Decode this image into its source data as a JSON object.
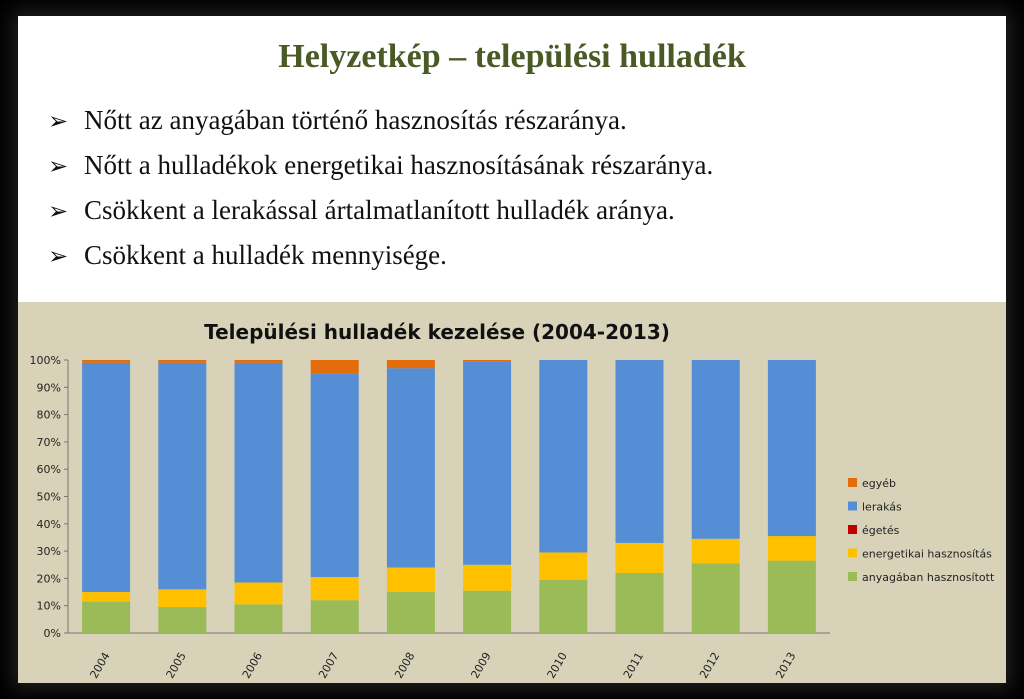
{
  "slide": {
    "title": "Helyzetkép – települési hulladék",
    "bullets": [
      "Nőtt az anyagában történő hasznosítás részaránya.",
      "Nőtt a hulladékok energetikai hasznosításának részaránya.",
      "Csökkent a lerakással ártalmatlanított hulladék aránya.",
      "Csökkent a hulladék mennyisége."
    ]
  },
  "chart_data": {
    "type": "bar",
    "stacked": true,
    "title": "Települési hulladék kezelése (2004-2013)",
    "categories": [
      "2004",
      "2005",
      "2006",
      "2007",
      "2008",
      "2009",
      "2010",
      "2011",
      "2012",
      "2013"
    ],
    "ylim": [
      0,
      100
    ],
    "yticks": [
      "0%",
      "10%",
      "20%",
      "30%",
      "40%",
      "50%",
      "60%",
      "70%",
      "80%",
      "90%",
      "100%"
    ],
    "grid": false,
    "legend_position": "right",
    "series": [
      {
        "name": "anyagában hasznosított",
        "color": "#9bbb59",
        "values": [
          11.5,
          9.5,
          10.5,
          12,
          15,
          15.5,
          19.5,
          22,
          25.5,
          26.5
        ]
      },
      {
        "name": "energetikai hasznosítás",
        "color": "#ffc000",
        "values": [
          3.5,
          6.5,
          8,
          8.5,
          9,
          9.5,
          10,
          11,
          9,
          9
        ]
      },
      {
        "name": "égetés",
        "color": "#c00000",
        "values": [
          0,
          0,
          0,
          0,
          0,
          0,
          0,
          0,
          0,
          0
        ]
      },
      {
        "name": "lerakás",
        "color": "#558ed5",
        "values": [
          84,
          83,
          80.5,
          74.5,
          73,
          74.5,
          70.5,
          67,
          65.5,
          64.5
        ]
      },
      {
        "name": "egyéb",
        "color": "#e46c0a",
        "values": [
          1,
          1,
          1,
          5,
          3,
          0.5,
          0,
          0,
          0,
          0
        ]
      }
    ],
    "legend_order": [
      "egyéb",
      "lerakás",
      "égetés",
      "energetikai hasznosítás",
      "anyagában hasznosított"
    ]
  }
}
